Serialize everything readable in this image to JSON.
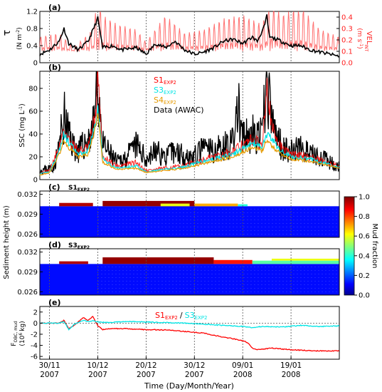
{
  "figure": {
    "xlabel": "Time (Day/Month/Year)",
    "x_ticks": [
      {
        "day": 0,
        "line1": "30/11",
        "line2": "2007"
      },
      {
        "day": 10,
        "line1": "10/12",
        "line2": "2007"
      },
      {
        "day": 20,
        "line1": "20/12",
        "line2": "2007"
      },
      {
        "day": 30,
        "line1": "30/12",
        "line2": "2007"
      },
      {
        "day": 40,
        "line1": "09/01",
        "line2": "2008"
      },
      {
        "day": 50,
        "line1": "19/01",
        "line2": "2008"
      }
    ],
    "xlim": [
      -2,
      60
    ]
  },
  "chart_data": [
    {
      "panel": "a",
      "type": "line",
      "label": "(a)",
      "ylabel_left": "τ",
      "ylabel_left_units": "(N m",
      "ylabel_left_sup": "-2",
      "ylabel_right": "VEL",
      "ylabel_right_sub": "INT",
      "ylabel_right_units": "(m s",
      "ylabel_right_sup": "-1",
      "ylim_left": [
        0,
        1.2
      ],
      "yticks_left": [
        "0",
        "0.4",
        "0.8",
        "1.2"
      ],
      "ylim_right": [
        0,
        0.45
      ],
      "yticks_right": [
        "0.0",
        "0.1",
        "0.2",
        "0.3",
        "0.4"
      ],
      "colors": {
        "tau": "#000000",
        "vel": "#ff4040"
      },
      "tau_key_points": [
        [
          -2,
          0.2
        ],
        [
          0,
          0.3
        ],
        [
          2,
          0.5
        ],
        [
          3,
          0.8
        ],
        [
          4,
          0.45
        ],
        [
          6,
          0.3
        ],
        [
          8,
          0.5
        ],
        [
          9.5,
          0.9
        ],
        [
          10,
          1.05
        ],
        [
          10.5,
          0.7
        ],
        [
          11,
          0.35
        ],
        [
          13,
          0.4
        ],
        [
          15,
          0.3
        ],
        [
          18,
          0.35
        ],
        [
          20,
          0.2
        ],
        [
          22,
          0.45
        ],
        [
          24,
          0.35
        ],
        [
          26,
          0.5
        ],
        [
          28,
          0.3
        ],
        [
          30,
          0.2
        ],
        [
          32,
          0.25
        ],
        [
          34,
          0.35
        ],
        [
          36,
          0.5
        ],
        [
          38,
          0.55
        ],
        [
          40,
          0.45
        ],
        [
          42,
          0.6
        ],
        [
          43,
          0.5
        ],
        [
          44.5,
          0.85
        ],
        [
          45,
          1.1
        ],
        [
          45.5,
          0.6
        ],
        [
          47,
          0.55
        ],
        [
          50,
          0.4
        ],
        [
          52,
          0.4
        ],
        [
          54,
          0.3
        ],
        [
          56,
          0.25
        ],
        [
          58,
          0.2
        ],
        [
          60,
          0.15
        ]
      ],
      "vel_envelope_points": [
        [
          -2,
          0.18
        ],
        [
          2,
          0.2
        ],
        [
          5,
          0.12
        ],
        [
          9,
          0.22
        ],
        [
          10,
          0.4
        ],
        [
          11,
          0.3
        ],
        [
          14,
          0.25
        ],
        [
          18,
          0.22
        ],
        [
          20,
          0.15
        ],
        [
          24,
          0.3
        ],
        [
          28,
          0.2
        ],
        [
          32,
          0.22
        ],
        [
          36,
          0.28
        ],
        [
          40,
          0.3
        ],
        [
          44,
          0.25
        ],
        [
          46,
          0.4
        ],
        [
          48,
          0.3
        ],
        [
          52,
          0.35
        ],
        [
          56,
          0.22
        ],
        [
          60,
          0.18
        ]
      ]
    },
    {
      "panel": "b",
      "type": "line",
      "label": "(b)",
      "ylabel": "SSC",
      "ylabel_units": "(mg L",
      "ylabel_sup": "-1",
      "ylim": [
        0,
        95
      ],
      "yticks": [
        "0",
        "20",
        "40",
        "60",
        "80"
      ],
      "legend": [
        {
          "main": "S1",
          "sub": "EXP2",
          "color": "#ff0000"
        },
        {
          "main": "S3",
          "sub": "EXP2",
          "color": "#00e5e5"
        },
        {
          "main": "S4",
          "sub": "EXP2",
          "color": "#e69a00"
        },
        {
          "main": "Data (AWAC)",
          "sub": "",
          "color": "#000000"
        }
      ],
      "data_key_points": [
        [
          -2,
          8
        ],
        [
          0,
          10
        ],
        [
          1,
          12
        ],
        [
          2,
          30
        ],
        [
          3,
          55
        ],
        [
          4,
          40
        ],
        [
          5,
          30
        ],
        [
          6,
          25
        ],
        [
          7,
          30
        ],
        [
          8,
          35
        ],
        [
          9,
          45
        ],
        [
          9.5,
          65
        ],
        [
          10,
          85
        ],
        [
          10.5,
          60
        ],
        [
          11,
          30
        ],
        [
          12,
          25
        ],
        [
          14,
          15
        ],
        [
          16,
          20
        ],
        [
          18,
          30
        ],
        [
          20,
          18
        ],
        [
          22,
          25
        ],
        [
          24,
          20
        ],
        [
          26,
          25
        ],
        [
          28,
          22
        ],
        [
          30,
          20
        ],
        [
          32,
          28
        ],
        [
          34,
          25
        ],
        [
          36,
          30
        ],
        [
          38,
          32
        ],
        [
          39,
          65
        ],
        [
          40,
          35
        ],
        [
          42,
          40
        ],
        [
          43,
          35
        ],
        [
          44,
          40
        ],
        [
          45,
          85
        ],
        [
          46,
          50
        ],
        [
          48,
          30
        ],
        [
          50,
          25
        ],
        [
          52,
          28
        ],
        [
          54,
          22
        ],
        [
          56,
          20
        ],
        [
          58,
          15
        ],
        [
          60,
          12
        ]
      ],
      "s1_key_points": [
        [
          -2,
          6
        ],
        [
          0,
          8
        ],
        [
          2,
          28
        ],
        [
          3,
          45
        ],
        [
          4,
          35
        ],
        [
          6,
          25
        ],
        [
          8,
          28
        ],
        [
          9.5,
          55
        ],
        [
          10,
          90
        ],
        [
          10.5,
          55
        ],
        [
          11,
          20
        ],
        [
          14,
          12
        ],
        [
          18,
          15
        ],
        [
          20,
          8
        ],
        [
          24,
          10
        ],
        [
          28,
          12
        ],
        [
          30,
          15
        ],
        [
          34,
          20
        ],
        [
          38,
          25
        ],
        [
          40,
          30
        ],
        [
          42,
          35
        ],
        [
          44,
          30
        ],
        [
          45,
          90
        ],
        [
          46,
          45
        ],
        [
          48,
          28
        ],
        [
          50,
          22
        ],
        [
          54,
          20
        ],
        [
          58,
          14
        ],
        [
          60,
          12
        ]
      ],
      "s3_key_points": [
        [
          -2,
          5
        ],
        [
          0,
          7
        ],
        [
          2,
          25
        ],
        [
          3,
          40
        ],
        [
          4,
          32
        ],
        [
          6,
          22
        ],
        [
          8,
          25
        ],
        [
          9.5,
          50
        ],
        [
          10,
          60
        ],
        [
          10.5,
          45
        ],
        [
          11,
          18
        ],
        [
          14,
          10
        ],
        [
          18,
          12
        ],
        [
          20,
          7
        ],
        [
          24,
          9
        ],
        [
          28,
          11
        ],
        [
          30,
          14
        ],
        [
          34,
          18
        ],
        [
          38,
          22
        ],
        [
          40,
          27
        ],
        [
          42,
          32
        ],
        [
          44,
          28
        ],
        [
          45,
          40
        ],
        [
          46,
          35
        ],
        [
          48,
          25
        ],
        [
          50,
          20
        ],
        [
          54,
          18
        ],
        [
          58,
          13
        ],
        [
          60,
          11
        ]
      ],
      "s4_key_points": [
        [
          -2,
          4
        ],
        [
          0,
          6
        ],
        [
          2,
          22
        ],
        [
          3,
          35
        ],
        [
          4,
          28
        ],
        [
          6,
          20
        ],
        [
          8,
          22
        ],
        [
          9.5,
          45
        ],
        [
          10,
          55
        ],
        [
          10.5,
          40
        ],
        [
          11,
          15
        ],
        [
          14,
          9
        ],
        [
          18,
          10
        ],
        [
          20,
          6
        ],
        [
          24,
          8
        ],
        [
          28,
          10
        ],
        [
          30,
          12
        ],
        [
          34,
          16
        ],
        [
          38,
          20
        ],
        [
          40,
          24
        ],
        [
          42,
          28
        ],
        [
          44,
          25
        ],
        [
          45,
          35
        ],
        [
          46,
          30
        ],
        [
          48,
          22
        ],
        [
          50,
          18
        ],
        [
          54,
          16
        ],
        [
          58,
          12
        ],
        [
          60,
          10
        ]
      ]
    },
    {
      "panel": "c",
      "type": "heatmap",
      "label": "(c)",
      "title_main": "S1",
      "title_sub": "EXP2",
      "ylim": [
        0.0255,
        0.0325
      ],
      "yticks": [
        "0.026",
        "0.029",
        "0.032"
      ],
      "bed_top": 0.0302,
      "layers": [
        {
          "from": 2,
          "to": 9,
          "bottom": 0.0302,
          "top": 0.0307,
          "fraction": 0.95
        },
        {
          "from": 11,
          "to": 30,
          "bottom": 0.0302,
          "top": 0.031,
          "fraction": 0.98
        },
        {
          "from": 30,
          "to": 39,
          "bottom": 0.0302,
          "top": 0.0306,
          "fraction": 0.7
        },
        {
          "from": 23,
          "to": 29,
          "bottom": 0.0302,
          "top": 0.0306,
          "fraction": 0.6
        },
        {
          "from": 39,
          "to": 41,
          "bottom": 0.0302,
          "top": 0.0305,
          "fraction": 0.4
        }
      ]
    },
    {
      "panel": "d",
      "type": "heatmap",
      "label": "(d)",
      "title_main": "S3",
      "title_sub": "EXP2",
      "ylim": [
        0.0255,
        0.0325
      ],
      "yticks": [
        "0.026",
        "0.029",
        "0.032"
      ],
      "bed_top": 0.0302,
      "layers": [
        {
          "from": 2,
          "to": 8,
          "bottom": 0.0302,
          "top": 0.0306,
          "fraction": 0.95
        },
        {
          "from": 11,
          "to": 34,
          "bottom": 0.0302,
          "top": 0.0312,
          "fraction": 0.98
        },
        {
          "from": 34,
          "to": 42,
          "bottom": 0.0302,
          "top": 0.0308,
          "fraction": 0.85
        },
        {
          "from": 42,
          "to": 60,
          "bottom": 0.0302,
          "top": 0.0307,
          "fraction": 0.45
        },
        {
          "from": 46,
          "to": 60,
          "bottom": 0.0307,
          "top": 0.031,
          "fraction": 0.6
        }
      ]
    },
    {
      "panel": "colorbar",
      "type": "heatmap",
      "label": "Mud fraction",
      "range": [
        0,
        1
      ],
      "ticks": [
        "0.0",
        "0.2",
        "0.4",
        "0.6",
        "0.8",
        "1.0"
      ]
    },
    {
      "panel": "cd-shared",
      "type": "heatmap",
      "ylabel": "Sediment height",
      "ylabel_units": "(m)"
    },
    {
      "panel": "e",
      "type": "line",
      "label": "(e)",
      "ylabel_main": "F",
      "ylabel_sub": "OBC, mud",
      "ylabel_units": "(10",
      "ylabel_sup": "6",
      "ylabel_end": "kg)",
      "ylim": [
        -6.5,
        3
      ],
      "yticks": [
        "2",
        "0",
        "-2",
        "-4",
        "-6"
      ],
      "ytick_values": [
        2,
        0,
        -2,
        -4,
        -6
      ],
      "legend": [
        {
          "main": "S1",
          "sub": "EXP2",
          "color": "#ff0000"
        },
        {
          "sep": "/"
        },
        {
          "main": "S3",
          "sub": "EXP2",
          "color": "#00e5e5"
        }
      ],
      "s1_key_points": [
        [
          -2,
          0
        ],
        [
          2,
          0
        ],
        [
          3,
          0.5
        ],
        [
          4,
          -1
        ],
        [
          5,
          -0.5
        ],
        [
          7,
          1
        ],
        [
          8,
          0.5
        ],
        [
          9,
          1.2
        ],
        [
          10,
          -0.5
        ],
        [
          11,
          -1.2
        ],
        [
          12,
          -1
        ],
        [
          16,
          -1
        ],
        [
          20,
          -1.2
        ],
        [
          24,
          -1.2
        ],
        [
          28,
          -1.5
        ],
        [
          32,
          -1.8
        ],
        [
          34,
          -2.2
        ],
        [
          36,
          -2.5
        ],
        [
          38,
          -2.8
        ],
        [
          40,
          -3.2
        ],
        [
          41,
          -3.5
        ],
        [
          42,
          -4.5
        ],
        [
          43,
          -4.8
        ],
        [
          46,
          -4.5
        ],
        [
          50,
          -4.8
        ],
        [
          55,
          -5
        ],
        [
          60,
          -5
        ]
      ],
      "s3_key_points": [
        [
          -2,
          0
        ],
        [
          2,
          0
        ],
        [
          3,
          0.3
        ],
        [
          4,
          -1.2
        ],
        [
          5,
          -0.3
        ],
        [
          7,
          0.5
        ],
        [
          8,
          0.3
        ],
        [
          9,
          0.4
        ],
        [
          10,
          0.2
        ],
        [
          12,
          0.1
        ],
        [
          16,
          0.3
        ],
        [
          20,
          0.2
        ],
        [
          24,
          0.1
        ],
        [
          28,
          0
        ],
        [
          32,
          -0.2
        ],
        [
          36,
          -0.4
        ],
        [
          38,
          -0.5
        ],
        [
          40,
          -0.6
        ],
        [
          42,
          -0.8
        ],
        [
          44,
          -0.6
        ],
        [
          48,
          -0.7
        ],
        [
          52,
          -0.4
        ],
        [
          56,
          -0.6
        ],
        [
          60,
          -0.5
        ]
      ]
    }
  ]
}
